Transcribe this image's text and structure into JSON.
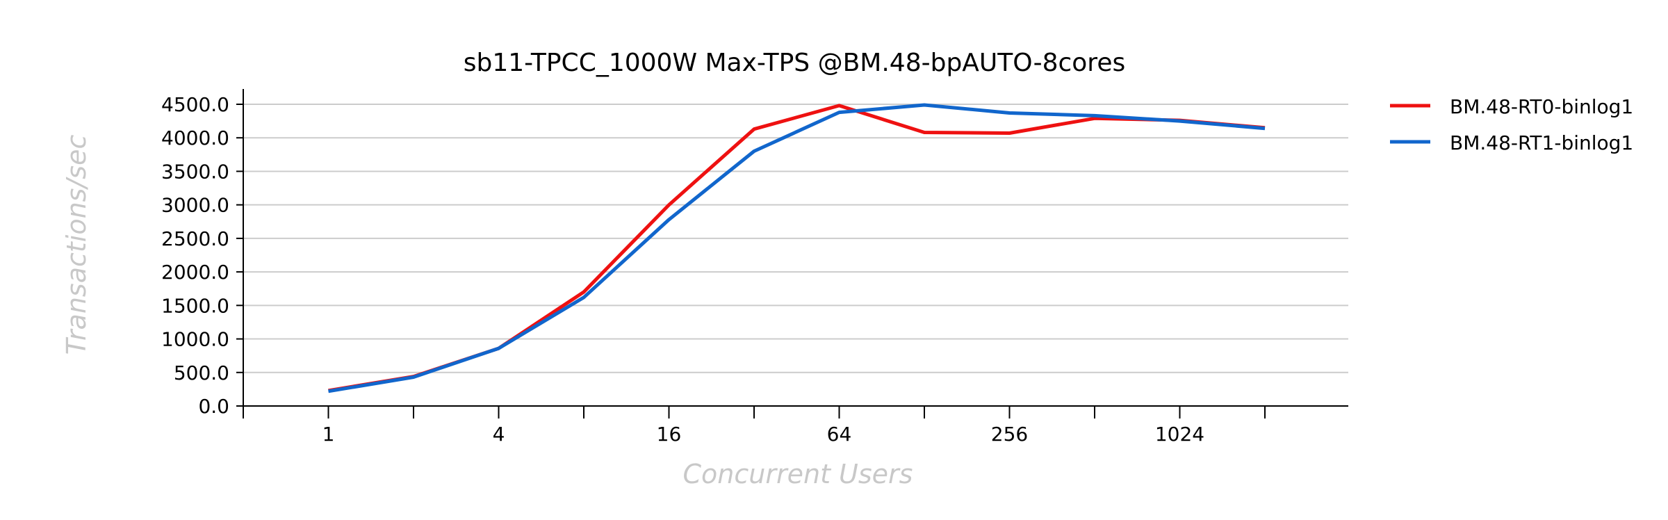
{
  "chart_data": {
    "type": "line",
    "title": "sb11-TPCC_1000W Max-TPS @BM.48-bpAUTO-8cores",
    "xlabel": "Concurrent Users",
    "ylabel": "Transactions/sec",
    "x_scale": "log2",
    "x": [
      1,
      2,
      4,
      8,
      16,
      32,
      64,
      128,
      256,
      512,
      1024,
      2048
    ],
    "x_tick_labels": [
      "1",
      "4",
      "16",
      "64",
      "256",
      "1024"
    ],
    "x_tick_label_values": [
      1,
      4,
      16,
      64,
      256,
      1024
    ],
    "y_ticks": [
      "0.0",
      "500.0",
      "1000.0",
      "1500.0",
      "2000.0",
      "2500.0",
      "3000.0",
      "3500.0",
      "4000.0",
      "4500.0"
    ],
    "ylim": [
      0,
      4500
    ],
    "grid": "horizontal",
    "legend_position": "right",
    "series": [
      {
        "name": "BM.48-RT0-binlog1",
        "color": "#ee1111",
        "values": [
          230,
          440,
          860,
          1700,
          3000,
          4130,
          4480,
          4080,
          4070,
          4290,
          4260,
          4150
        ]
      },
      {
        "name": "BM.48-RT1-binlog1",
        "color": "#1166cc",
        "values": [
          220,
          430,
          860,
          1620,
          2780,
          3800,
          4380,
          4490,
          4370,
          4330,
          4250,
          4140
        ]
      }
    ]
  }
}
